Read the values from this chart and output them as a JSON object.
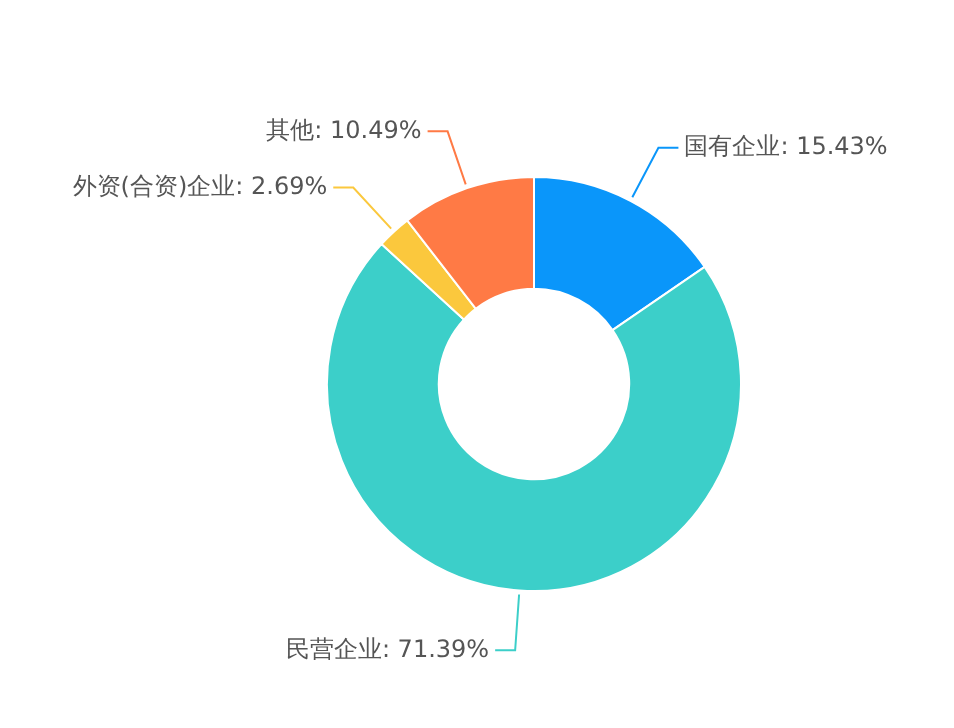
{
  "chart_data": {
    "type": "donut",
    "categories": [
      "国有企业",
      "民营企业",
      "外资(合资)企业",
      "其他"
    ],
    "values": [
      15.43,
      71.39,
      2.69,
      10.49
    ],
    "value_labels": [
      "15.43%",
      "71.39%",
      "2.69%",
      "10.49%"
    ],
    "colors": [
      "#0a96fa",
      "#3ccfc9",
      "#fbc83d",
      "#ff7a45"
    ],
    "legend": false
  }
}
